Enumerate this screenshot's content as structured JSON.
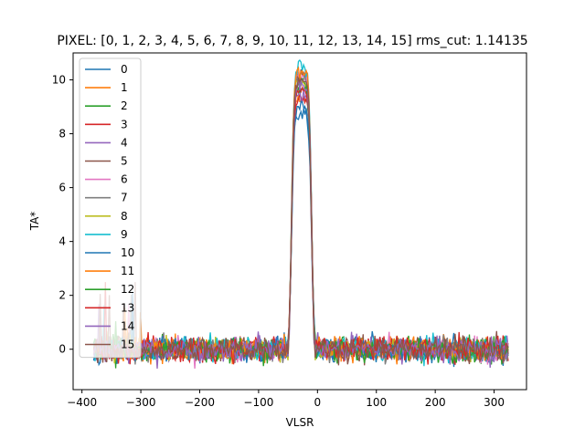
{
  "chart_data": {
    "type": "line",
    "title": "PIXEL: [0, 1, 2, 3, 4, 5, 6, 7, 8, 9, 10, 11, 12, 13, 14, 15]   rms_cut: 1.14135",
    "xlabel": "VLSR",
    "ylabel": "TA*",
    "xlim": [
      -415,
      355
    ],
    "ylim": [
      -1.5,
      11.0
    ],
    "x_ticks": [
      -400,
      -300,
      -200,
      -100,
      0,
      100,
      200,
      300
    ],
    "y_ticks": [
      0,
      2,
      4,
      6,
      8,
      10
    ],
    "grid": false,
    "legend": "top-left",
    "x_range": [
      -380,
      325
    ],
    "peak": {
      "center": -27,
      "half_width": 17
    },
    "noise_rms": 0.23,
    "series": [
      {
        "name": "0",
        "color": "#1f77b4",
        "peak": 8.7
      },
      {
        "name": "1",
        "color": "#ff7f0e",
        "peak": 9.4
      },
      {
        "name": "2",
        "color": "#2ca02c",
        "peak": 9.9
      },
      {
        "name": "3",
        "color": "#d62728",
        "peak": 9.3
      },
      {
        "name": "4",
        "color": "#9467bd",
        "peak": 9.5
      },
      {
        "name": "5",
        "color": "#8c564b",
        "peak": 10.2
      },
      {
        "name": "6",
        "color": "#e377c2",
        "peak": 10.1
      },
      {
        "name": "7",
        "color": "#7f7f7f",
        "peak": 10.0
      },
      {
        "name": "8",
        "color": "#bcbd22",
        "peak": 9.9
      },
      {
        "name": "9",
        "color": "#17becf",
        "peak": 10.5
      },
      {
        "name": "10",
        "color": "#1f77b4",
        "peak": 9.0
      },
      {
        "name": "11",
        "color": "#ff7f0e",
        "peak": 10.3
      },
      {
        "name": "12",
        "color": "#2ca02c",
        "peak": 9.7
      },
      {
        "name": "13",
        "color": "#d62728",
        "peak": 9.6
      },
      {
        "name": "14",
        "color": "#9467bd",
        "peak": 9.8
      },
      {
        "name": "15",
        "color": "#8c564b",
        "peak": 10.0
      }
    ]
  }
}
